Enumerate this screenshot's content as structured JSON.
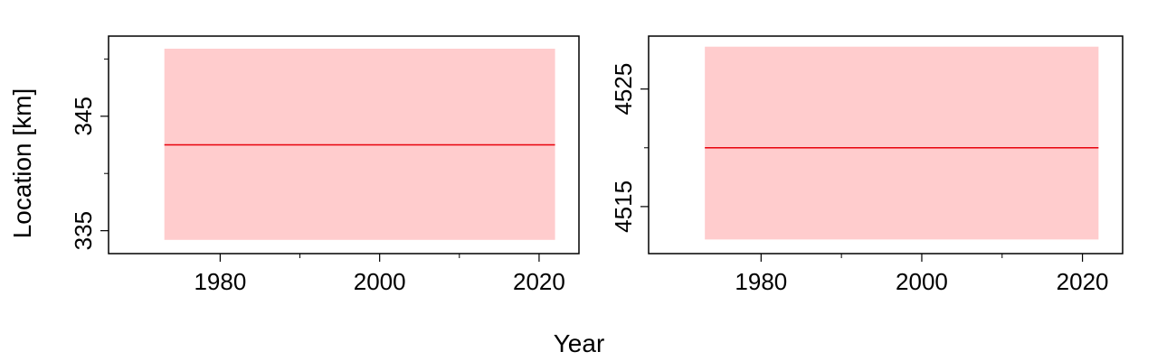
{
  "figure": {
    "ylabel": "Location [km]",
    "xlabel": "Year"
  },
  "chart_data": [
    {
      "type": "line",
      "title": "",
      "xlabel": "Year",
      "ylabel": "Location [km]",
      "xlim": [
        1966,
        2025
      ],
      "ylim": [
        333,
        352
      ],
      "xticks": [
        1980,
        2000,
        2020
      ],
      "xminor": [
        1990,
        2010
      ],
      "yticks": [
        335,
        345
      ],
      "yminor": [
        340,
        350
      ],
      "grid": false,
      "series": [
        {
          "x": [
            1973,
            2022
          ],
          "y": [
            342.5,
            342.5
          ],
          "band_low": [
            334.2,
            334.2
          ],
          "band_high": [
            350.9,
            350.9
          ],
          "color": "#e8000b",
          "band_color": "#ffcccd"
        }
      ]
    },
    {
      "type": "line",
      "title": "",
      "xlabel": "Year",
      "ylabel": "",
      "xlim": [
        1966,
        2025
      ],
      "ylim": [
        4511,
        4529.5
      ],
      "xticks": [
        1980,
        2000,
        2020
      ],
      "xminor": [
        1990,
        2010
      ],
      "yticks": [
        4515,
        4525
      ],
      "yminor": [
        4520
      ],
      "grid": false,
      "series": [
        {
          "x": [
            1973,
            2022
          ],
          "y": [
            4520,
            4520
          ],
          "band_low": [
            4512.2,
            4512.2
          ],
          "band_high": [
            4528.6,
            4528.6
          ],
          "color": "#e8000b",
          "band_color": "#ffcccd"
        }
      ]
    }
  ]
}
